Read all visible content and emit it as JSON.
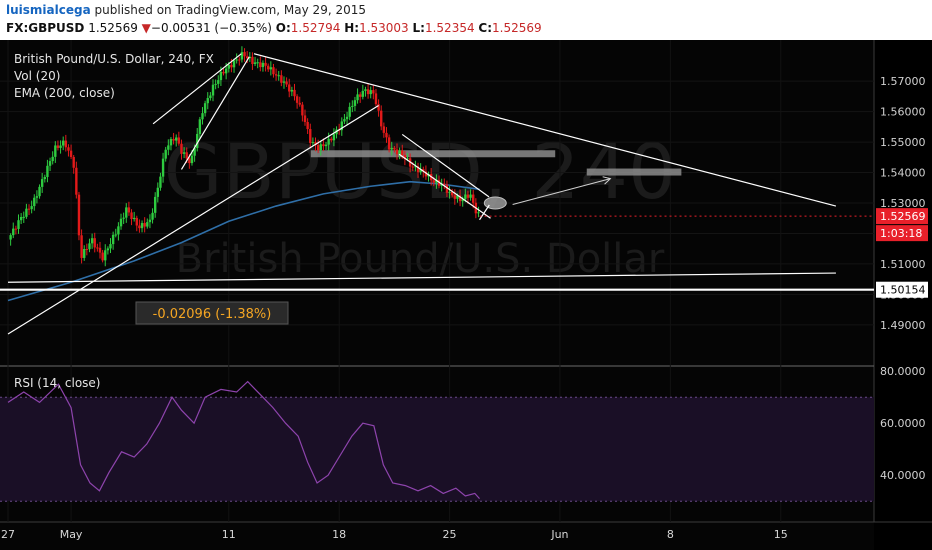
{
  "header": {
    "author": "luismialcega",
    "published_text": "published on TradingView.com, May 29, 2015",
    "symbol": "FX:GBPUSD",
    "last": "1.52569",
    "change_arrow": "▼",
    "change": "−0.00531 (−0.35%)",
    "o_label": "O:",
    "o_val": "1.52794",
    "h_label": "H:",
    "h_val": "1.53003",
    "l_label": "L:",
    "l_val": "1.52354",
    "c_label": "C:",
    "c_val": "1.52569"
  },
  "legend": {
    "title": "British Pound/U.S. Dollar, 240, FX",
    "vol": "Vol (20)",
    "ema": "EMA (200, close)"
  },
  "watermark": {
    "symbol": "GBPUSD, 240",
    "name": "British Pound/U.S. Dollar"
  },
  "colors": {
    "up": "#2ecc40",
    "down": "#e31a1a",
    "ema": "#2f6fa8",
    "rsi": "#8e44ad",
    "current": "#e8202a"
  },
  "chart_data": [
    {
      "type": "candlestick",
      "title": "British Pound/U.S. Dollar, 240, FX",
      "ylim": [
        1.4765,
        1.5835
      ],
      "yticks": [
        1.49,
        1.5,
        1.51,
        1.52,
        1.53,
        1.54,
        1.55,
        1.56,
        1.57
      ],
      "ytick_labels": [
        "1.49000",
        "1.50000",
        "1.51000",
        "1.52000",
        "1.53000",
        "1.54000",
        "1.55000",
        "1.56000",
        "1.57000"
      ],
      "x_ticks": [
        {
          "label": "27",
          "x": 0
        },
        {
          "label": "May",
          "x": 4
        },
        {
          "label": "11",
          "x": 14
        },
        {
          "label": "18",
          "x": 21
        },
        {
          "label": "25",
          "x": 28
        },
        {
          "label": "Jun",
          "x": 35
        },
        {
          "label": "8",
          "x": 42
        },
        {
          "label": "15",
          "x": 49
        }
      ],
      "x_unit": "days since Apr 27, 2015",
      "price_path": [
        [
          0,
          1.518
        ],
        [
          0.8,
          1.525
        ],
        [
          1.6,
          1.53
        ],
        [
          2.3,
          1.539
        ],
        [
          3.0,
          1.548
        ],
        [
          3.6,
          1.55
        ],
        [
          4.2,
          1.542
        ],
        [
          4.6,
          1.512
        ],
        [
          5.3,
          1.518
        ],
        [
          6.0,
          1.512
        ],
        [
          6.8,
          1.52
        ],
        [
          7.5,
          1.528
        ],
        [
          8.3,
          1.522
        ],
        [
          9.0,
          1.524
        ],
        [
          9.5,
          1.535
        ],
        [
          10.0,
          1.548
        ],
        [
          10.6,
          1.552
        ],
        [
          11.0,
          1.547
        ],
        [
          11.6,
          1.543
        ],
        [
          12.3,
          1.56
        ],
        [
          13.0,
          1.568
        ],
        [
          13.6,
          1.573
        ],
        [
          14.3,
          1.576
        ],
        [
          14.9,
          1.579
        ],
        [
          15.6,
          1.576
        ],
        [
          16.4,
          1.575
        ],
        [
          17.0,
          1.572
        ],
        [
          17.6,
          1.569
        ],
        [
          18.2,
          1.565
        ],
        [
          18.7,
          1.559
        ],
        [
          19.2,
          1.55
        ],
        [
          19.7,
          1.548
        ],
        [
          20.3,
          1.55
        ],
        [
          20.9,
          1.554
        ],
        [
          21.4,
          1.558
        ],
        [
          22.0,
          1.564
        ],
        [
          22.6,
          1.567
        ],
        [
          23.2,
          1.566
        ],
        [
          23.7,
          1.555
        ],
        [
          24.2,
          1.548
        ],
        [
          25.0,
          1.546
        ],
        [
          25.6,
          1.542
        ],
        [
          26.4,
          1.54
        ],
        [
          27.0,
          1.537
        ],
        [
          27.6,
          1.536
        ],
        [
          28.0,
          1.533
        ],
        [
          28.7,
          1.531
        ],
        [
          29.3,
          1.533
        ],
        [
          29.6,
          1.528
        ],
        [
          29.9,
          1.5257
        ]
      ],
      "last_price": 1.52569,
      "last_price_label": "1.52569",
      "countdown_label": "1:03:18",
      "support_level": 1.50154,
      "support_label": "1.50154",
      "measure_label": "-0.02096 (-1.38%)",
      "ema_200": [
        [
          0,
          1.498
        ],
        [
          4,
          1.504
        ],
        [
          8,
          1.511
        ],
        [
          11,
          1.517
        ],
        [
          14,
          1.524
        ],
        [
          17,
          1.529
        ],
        [
          20,
          1.533
        ],
        [
          23,
          1.5355
        ],
        [
          25.5,
          1.537
        ],
        [
          27.5,
          1.5362
        ],
        [
          29.9,
          1.5345
        ]
      ],
      "trendlines": [
        {
          "from": [
            0,
            1.487
          ],
          "to": [
            23.5,
            1.562
          ]
        },
        {
          "from": [
            9.2,
            1.556
          ],
          "to": [
            14.8,
            1.579
          ]
        },
        {
          "from": [
            11.0,
            1.541
          ],
          "to": [
            15.3,
            1.578
          ]
        },
        {
          "from": [
            15.6,
            1.579
          ],
          "to": [
            52.5,
            1.529
          ]
        },
        {
          "from": [
            0,
            1.504
          ],
          "to": [
            52.5,
            1.507
          ]
        },
        {
          "from": [
            0,
            1.5015
          ],
          "to": [
            52.5,
            1.5015
          ]
        },
        {
          "from": [
            25.0,
            1.5525
          ],
          "to": [
            30.5,
            1.532
          ]
        },
        {
          "from": [
            24.8,
            1.546
          ],
          "to": [
            30.6,
            1.525
          ]
        }
      ],
      "zones": [
        {
          "x1": 19.2,
          "x2": 34.7,
          "price": 1.546
        },
        {
          "x1": 36.7,
          "x2": 42.7,
          "price": 1.54
        }
      ],
      "projection": {
        "from": [
          32.0,
          1.5295
        ],
        "to": [
          38.2,
          1.538
        ]
      }
    },
    {
      "type": "line",
      "title": "RSI (14, close)",
      "ylim": [
        22,
        82
      ],
      "yticks": [
        40,
        60,
        80
      ],
      "ytick_labels": [
        "40.0000",
        "60.0000",
        "80.0000"
      ],
      "band": [
        30,
        70
      ],
      "rsi_path": [
        [
          0,
          68
        ],
        [
          1.0,
          72
        ],
        [
          2.0,
          68
        ],
        [
          3.2,
          75
        ],
        [
          4.0,
          66
        ],
        [
          4.6,
          44
        ],
        [
          5.2,
          37
        ],
        [
          5.8,
          34
        ],
        [
          6.4,
          41
        ],
        [
          7.2,
          49
        ],
        [
          8.0,
          47
        ],
        [
          8.8,
          52
        ],
        [
          9.6,
          60
        ],
        [
          10.4,
          70
        ],
        [
          11.0,
          65
        ],
        [
          11.8,
          60
        ],
        [
          12.5,
          70
        ],
        [
          13.5,
          73
        ],
        [
          14.5,
          72
        ],
        [
          15.2,
          76
        ],
        [
          16.0,
          71
        ],
        [
          16.8,
          66
        ],
        [
          17.6,
          60
        ],
        [
          18.4,
          55
        ],
        [
          19.0,
          45
        ],
        [
          19.6,
          37
        ],
        [
          20.3,
          40
        ],
        [
          21.0,
          47
        ],
        [
          21.8,
          55
        ],
        [
          22.5,
          60
        ],
        [
          23.2,
          59
        ],
        [
          23.8,
          44
        ],
        [
          24.4,
          37
        ],
        [
          25.2,
          36
        ],
        [
          26.0,
          34
        ],
        [
          26.8,
          36
        ],
        [
          27.6,
          33
        ],
        [
          28.4,
          35
        ],
        [
          29.0,
          32
        ],
        [
          29.6,
          33
        ],
        [
          29.9,
          31
        ]
      ]
    }
  ]
}
